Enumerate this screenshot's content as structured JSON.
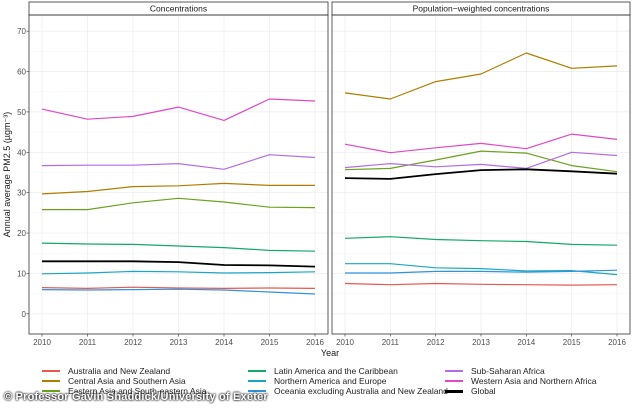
{
  "chart_data": {
    "type": "line",
    "ylabel": "Annual average PM2.5 (µgm⁻³)",
    "xlabel": "Year",
    "x": [
      2010,
      2011,
      2012,
      2013,
      2014,
      2015,
      2016
    ],
    "ylim": [
      -5,
      74
    ],
    "yticks": [
      0,
      10,
      20,
      30,
      40,
      50,
      60,
      70
    ],
    "panels": [
      {
        "title": "Concentrations",
        "series": [
          {
            "name": "Australia and New Zealand",
            "values": [
              6.5,
              6.3,
              6.6,
              6.4,
              6.3,
              6.4,
              6.3
            ]
          },
          {
            "name": "Central Asia and Southern Asia",
            "values": [
              29.7,
              30.3,
              31.5,
              31.7,
              32.3,
              31.8,
              31.8
            ]
          },
          {
            "name": "Eastern Asia and South-eastern Asia",
            "values": [
              25.8,
              25.8,
              27.5,
              28.6,
              27.7,
              26.4,
              26.3
            ]
          },
          {
            "name": "Latin America and the Caribbean",
            "values": [
              17.5,
              17.3,
              17.2,
              16.8,
              16.4,
              15.7,
              15.5
            ]
          },
          {
            "name": "Northern America and Europe",
            "values": [
              9.9,
              10.1,
              10.5,
              10.4,
              10.1,
              10.2,
              10.4
            ]
          },
          {
            "name": "Oceania excluding Australia and New Zealand",
            "values": [
              6.0,
              5.9,
              6.0,
              6.1,
              5.9,
              5.4,
              4.9
            ]
          },
          {
            "name": "Sub-Saharan Africa",
            "values": [
              36.7,
              36.8,
              36.8,
              37.2,
              35.8,
              39.4,
              38.7
            ]
          },
          {
            "name": "Western Asia and Northern Africa",
            "values": [
              50.7,
              48.2,
              48.9,
              51.2,
              47.9,
              53.2,
              52.7
            ]
          },
          {
            "name": "Global",
            "values": [
              13.0,
              13.0,
              13.0,
              12.8,
              12.1,
              12.0,
              11.7
            ]
          }
        ]
      },
      {
        "title": "Population−weighted concentrations",
        "series": [
          {
            "name": "Australia and New Zealand",
            "values": [
              7.5,
              7.2,
              7.5,
              7.3,
              7.2,
              7.1,
              7.2
            ]
          },
          {
            "name": "Central Asia and Southern Asia",
            "values": [
              54.7,
              53.2,
              57.5,
              59.4,
              64.6,
              60.8,
              61.4
            ]
          },
          {
            "name": "Eastern Asia and South-eastern Asia",
            "values": [
              35.7,
              36.0,
              38.1,
              40.3,
              39.8,
              36.7,
              35.2
            ]
          },
          {
            "name": "Latin America and the Caribbean",
            "values": [
              18.7,
              19.1,
              18.4,
              18.1,
              17.9,
              17.2,
              17.0
            ]
          },
          {
            "name": "Northern America and Europe",
            "values": [
              12.4,
              12.4,
              11.4,
              11.2,
              10.6,
              10.7,
              9.7
            ]
          },
          {
            "name": "Oceania excluding Australia and New Zealand",
            "values": [
              10.1,
              10.1,
              10.5,
              10.5,
              10.3,
              10.5,
              10.8
            ]
          },
          {
            "name": "Sub-Saharan Africa",
            "values": [
              36.2,
              37.2,
              36.4,
              37.0,
              36.0,
              40.0,
              39.2
            ]
          },
          {
            "name": "Western Asia and Northern Africa",
            "values": [
              42.0,
              39.9,
              41.1,
              42.2,
              40.9,
              44.5,
              43.2
            ]
          },
          {
            "name": "Global",
            "values": [
              33.6,
              33.4,
              34.6,
              35.6,
              35.8,
              35.3,
              34.7
            ]
          }
        ]
      }
    ]
  },
  "colors": {
    "Australia and New Zealand": "#e8584f",
    "Central Asia and Southern Asia": "#b07d00",
    "Eastern Asia and South-eastern Asia": "#6aa21c",
    "Latin America and the Caribbean": "#14a869",
    "Northern America and Europe": "#1aa7c4",
    "Oceania excluding Australia and New Zealand": "#2f93e0",
    "Sub-Saharan Africa": "#b46ce6",
    "Western Asia and Northern Africa": "#e248c4",
    "Global": "#000000"
  },
  "legend": {
    "items": [
      "Australia and New Zealand",
      "Latin America and the Caribbean",
      "Sub-Saharan Africa",
      "Central Asia and Southern Asia",
      "Northern America and Europe",
      "Western Asia and Northern Africa",
      "Eastern Asia and South-eastern Asia",
      "Oceania excluding Australia and New Zealand",
      "Global"
    ]
  },
  "credit": "© Professor Gavin Shaddick/University of Exeter"
}
